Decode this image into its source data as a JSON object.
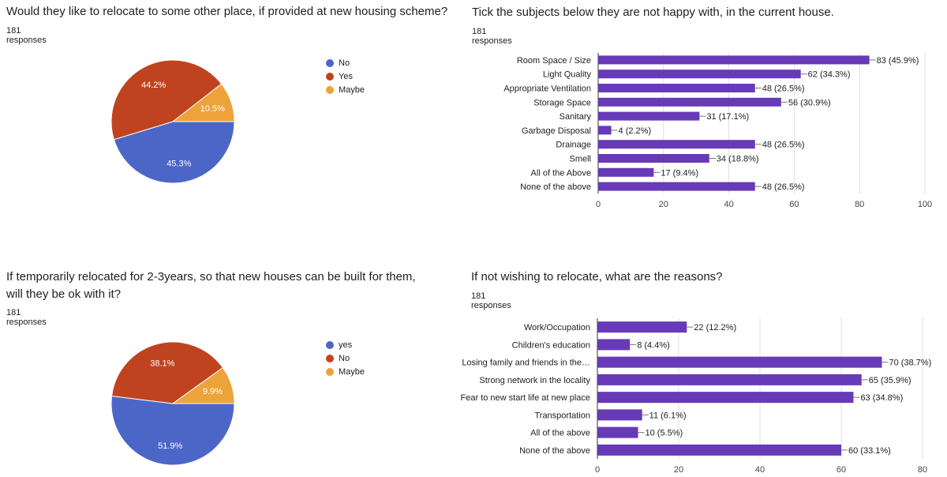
{
  "chart_data": [
    {
      "type": "pie",
      "title": "Would they like to relocate to some other place, if provided at new housing scheme?",
      "subtitle": "181 responses",
      "slices": [
        {
          "label": "No",
          "value": 45.3,
          "display": "45.3%",
          "color": "#4c66c8"
        },
        {
          "label": "Yes",
          "value": 44.2,
          "display": "44.2%",
          "color": "#c0431f"
        },
        {
          "label": "Maybe",
          "value": 10.5,
          "display": "10.5%",
          "color": "#eca33a"
        }
      ],
      "legend_position": "right"
    },
    {
      "type": "bar",
      "orientation": "horizontal",
      "title": "Tick the subjects below they are not happy with, in the current house.",
      "subtitle": "181 responses",
      "categories": [
        "Room Space / Size",
        "Light Quality",
        "Appropriate Ventilation",
        "Storage Space",
        "Sanitary",
        "Garbage Disposal",
        "Drainage",
        "Smell",
        "All of the Above",
        "None of the above"
      ],
      "values": [
        83,
        62,
        48,
        56,
        31,
        4,
        48,
        34,
        17,
        48
      ],
      "data_labels": [
        "83 (45.9%)",
        "62 (34.3%)",
        "48 (26.5%)",
        "56 (30.9%)",
        "31 (17.1%)",
        "4 (2.2%)",
        "48 (26.5%)",
        "34 (18.8%)",
        "17 (9.4%)",
        "48 (26.5%)"
      ],
      "xlim": [
        0,
        100
      ],
      "xticks": [
        "0",
        "20",
        "40",
        "60",
        "80",
        "100"
      ],
      "color": "#673ab7",
      "grid": true
    },
    {
      "type": "pie",
      "title": "If temporarily relocated for 2-3years, so that new houses can be built for them, will they be ok with it?",
      "subtitle": "181 responses",
      "slices": [
        {
          "label": "yes",
          "value": 51.9,
          "display": "51.9%",
          "color": "#4c66c8"
        },
        {
          "label": "No",
          "value": 38.1,
          "display": "38.1%",
          "color": "#c0431f"
        },
        {
          "label": "Maybe",
          "value": 9.9,
          "display": "9.9%",
          "color": "#eca33a"
        }
      ],
      "legend_position": "right"
    },
    {
      "type": "bar",
      "orientation": "horizontal",
      "title": "If not wishing to relocate, what are the reasons?",
      "subtitle": "181 responses",
      "categories": [
        "Work/Occupation",
        "Children's education",
        "Losing family and friends in the…",
        "Strong network in the locality",
        "Fear to new start life at new place",
        "Transportation",
        "All of the above",
        "None of the above"
      ],
      "values": [
        22,
        8,
        70,
        65,
        63,
        11,
        10,
        60
      ],
      "data_labels": [
        "22 (12.2%)",
        "8 (4.4%)",
        "70 (38.7%)",
        "65 (35.9%)",
        "63 (34.8%)",
        "11 (6.1%)",
        "10 (5.5%)",
        "60 (33.1%)"
      ],
      "xlim": [
        0,
        80
      ],
      "xticks": [
        "0",
        "20",
        "40",
        "60",
        "80"
      ],
      "color": "#673ab7",
      "grid": true
    }
  ]
}
